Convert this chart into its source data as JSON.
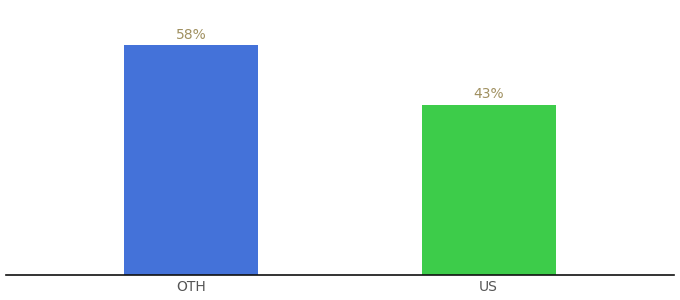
{
  "categories": [
    "OTH",
    "US"
  ],
  "values": [
    58,
    43
  ],
  "bar_colors": [
    "#4472d9",
    "#3dcc4a"
  ],
  "label_texts": [
    "58%",
    "43%"
  ],
  "label_color": "#a09060",
  "ylim": [
    0,
    68
  ],
  "bar_width": 0.18,
  "background_color": "#ffffff",
  "tick_label_fontsize": 10,
  "value_label_fontsize": 10,
  "spine_color": "#111111",
  "x_positions": [
    0.3,
    0.7
  ]
}
